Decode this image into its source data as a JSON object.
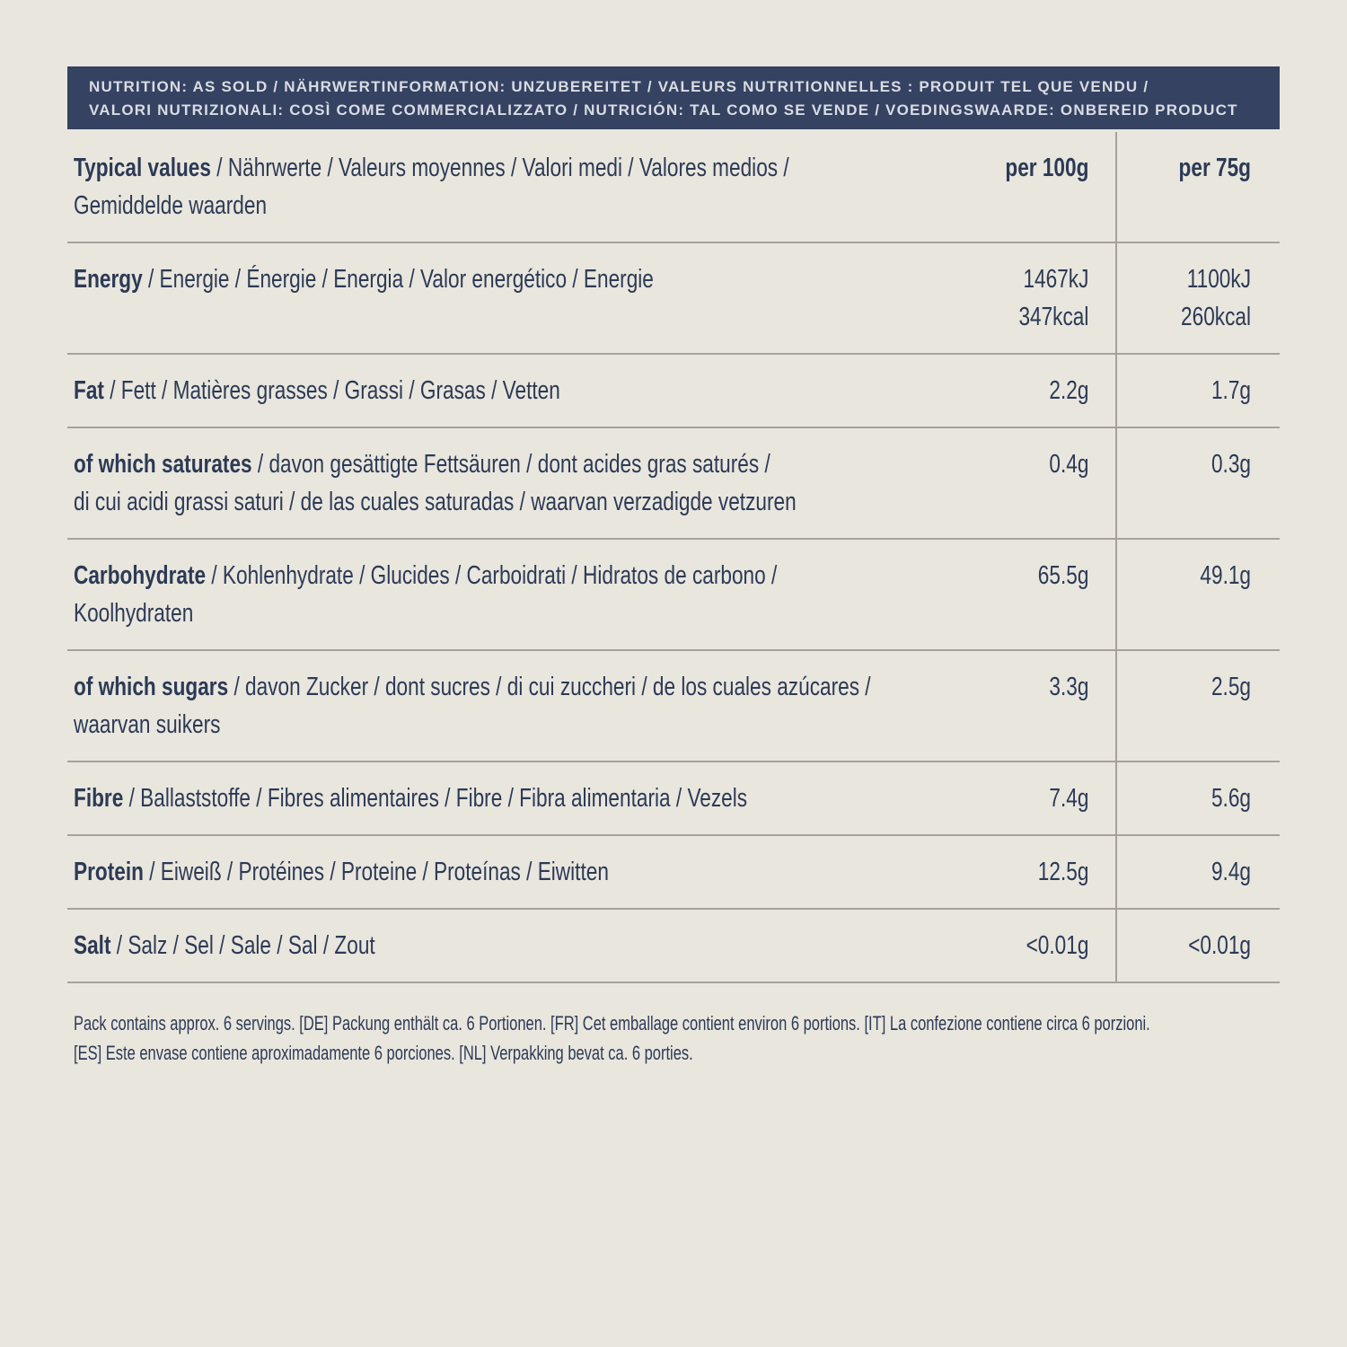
{
  "colors": {
    "background": "#e9e6de",
    "banner_background": "#354262",
    "banner_text": "#d9dce2",
    "body_text": "#2c3a55",
    "rule_lines": "#a6a29a"
  },
  "banner": {
    "line1": "NUTRITION: AS SOLD / NÄHRWERTINFORMATION: UNZUBEREITET / VALEURS NUTRITIONNELLES : PRODUIT TEL QUE VENDU /",
    "line2": "VALORI NUTRIZIONALI: COSÌ COME COMMERCIALIZZATO / NUTRICIÓN: TAL COMO SE VENDE / VOEDINGSWAARDE: ONBEREID PRODUCT"
  },
  "table": {
    "header_row": {
      "bold": "Typical values",
      "rest": " / Nährwerte / Valeurs moyennes / Valori medi / Valores medios /",
      "line2": "Gemiddelde waarden",
      "col_per100": "per 100g",
      "col_per75": "per 75g"
    },
    "rows": [
      {
        "bold": "Energy",
        "rest": " / Energie / Énergie / Energia / Valor energético / Energie",
        "line2": "",
        "per100": [
          "1467kJ",
          "347kcal"
        ],
        "per75": [
          "1100kJ",
          "260kcal"
        ]
      },
      {
        "bold": "Fat",
        "rest": " / Fett / Matières grasses / Grassi / Grasas / Vetten",
        "line2": "",
        "per100": [
          "2.2g"
        ],
        "per75": [
          "1.7g"
        ]
      },
      {
        "bold": "of which saturates",
        "rest": " / davon gesättigte Fettsäuren / dont acides gras saturés /",
        "line2": "di cui acidi grassi saturi / de las cuales saturadas / waarvan verzadigde vetzuren",
        "per100": [
          "0.4g"
        ],
        "per75": [
          "0.3g"
        ]
      },
      {
        "bold": "Carbohydrate",
        "rest": " / Kohlenhydrate / Glucides / Carboidrati / Hidratos de carbono /",
        "line2": "Koolhydraten",
        "per100": [
          "65.5g"
        ],
        "per75": [
          "49.1g"
        ]
      },
      {
        "bold": "of which sugars",
        "rest": " / davon Zucker / dont sucres / di cui zuccheri / de los cuales azúcares /",
        "line2": "waarvan suikers",
        "per100": [
          "3.3g"
        ],
        "per75": [
          "2.5g"
        ]
      },
      {
        "bold": "Fibre",
        "rest": " / Ballaststoffe / Fibres alimentaires / Fibre / Fibra alimentaria / Vezels",
        "line2": "",
        "per100": [
          "7.4g"
        ],
        "per75": [
          "5.6g"
        ]
      },
      {
        "bold": "Protein",
        "rest": " / Eiweiß / Protéines / Proteine / Proteínas / Eiwitten",
        "line2": "",
        "per100": [
          "12.5g"
        ],
        "per75": [
          "9.4g"
        ]
      },
      {
        "bold": "Salt",
        "rest": " / Salz / Sel / Sale / Sal / Zout",
        "line2": "",
        "per100": [
          "<0.01g"
        ],
        "per75": [
          "<0.01g"
        ]
      }
    ]
  },
  "footer": {
    "line1": "Pack contains approx. 6 servings. [DE] Packung enthält ca. 6 Portionen. [FR] Cet emballage contient environ 6 portions. [IT] La confezione contiene circa 6 porzioni.",
    "line2": "[ES] Este envase contiene aproximadamente 6 porciones. [NL] Verpakking bevat ca. 6 porties."
  }
}
